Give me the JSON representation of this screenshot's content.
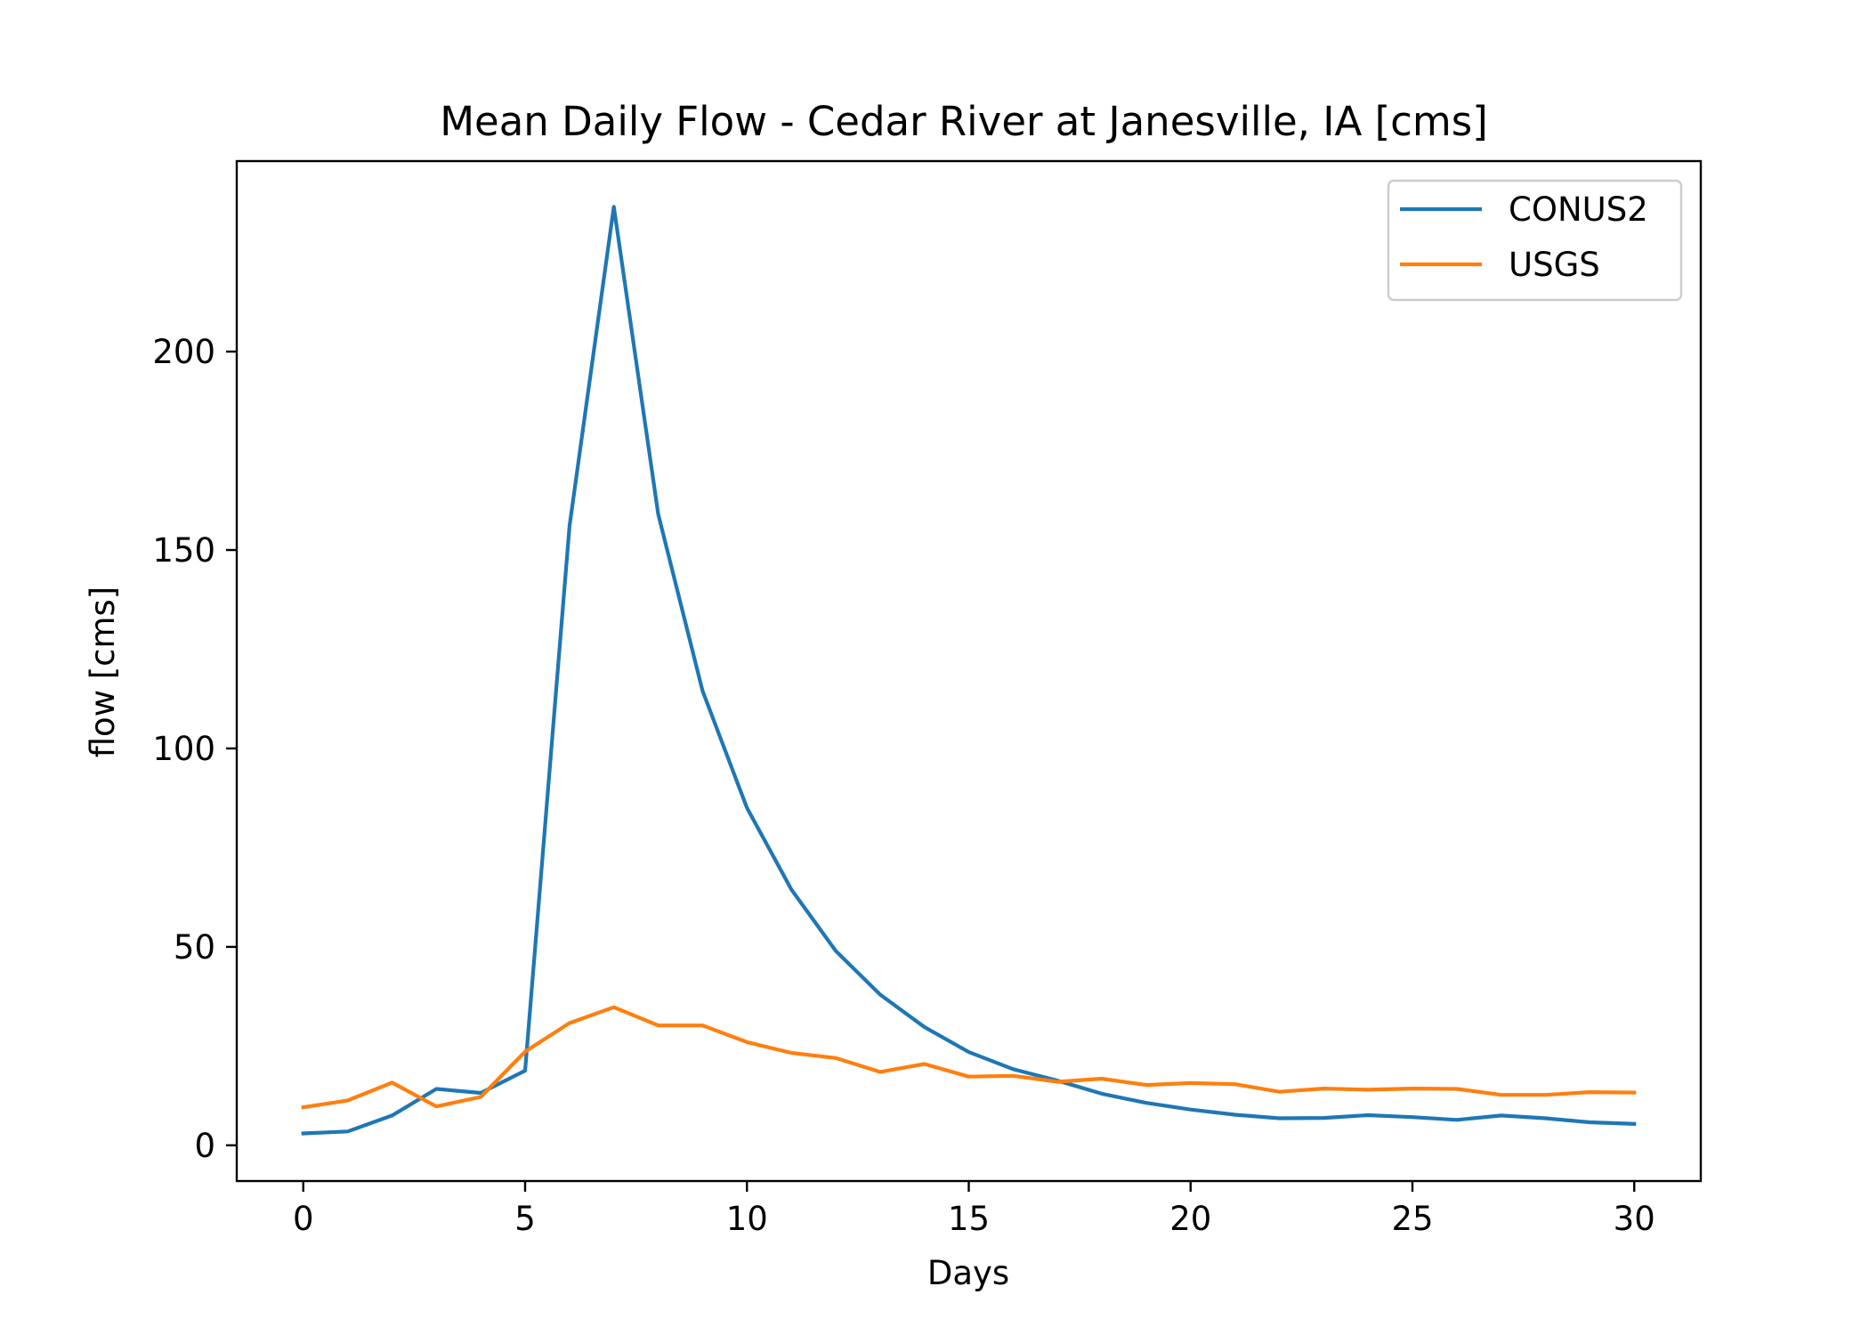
{
  "chart_data": {
    "type": "line",
    "title": "Mean Daily Flow - Cedar River at Janesville, IA [cms]",
    "xlabel": "Days",
    "ylabel": "flow [cms]",
    "xlim": [
      -1.5,
      31.5
    ],
    "ylim": [
      -9,
      248
    ],
    "xticks": [
      0,
      5,
      10,
      15,
      20,
      25,
      30
    ],
    "yticks": [
      0,
      50,
      100,
      150,
      200
    ],
    "grid": false,
    "legend_position": "top-right",
    "x": [
      0,
      1,
      2,
      3,
      4,
      5,
      6,
      7,
      8,
      9,
      10,
      11,
      12,
      13,
      14,
      15,
      16,
      17,
      18,
      19,
      20,
      21,
      22,
      23,
      24,
      25,
      26,
      27,
      28,
      29,
      30
    ],
    "series": [
      {
        "name": "CONUS2",
        "color": "#1f77b4",
        "values": [
          3,
          3.5,
          7.5,
          14.2,
          13.2,
          18.8,
          156,
          236.5,
          159,
          114.5,
          85,
          64.5,
          49,
          38,
          29.8,
          23.5,
          19.2,
          16.3,
          13,
          10.7,
          9,
          7.7,
          6.8,
          6.9,
          7.6,
          7.1,
          6.4,
          7.5,
          6.8,
          5.8,
          5.4
        ]
      },
      {
        "name": "USGS",
        "color": "#ff7f0e",
        "values": [
          9.6,
          11.3,
          15.8,
          9.8,
          12.2,
          23.6,
          30.8,
          34.8,
          30.2,
          30.2,
          26,
          23.3,
          22,
          18.5,
          20.5,
          17.3,
          17.5,
          16,
          16.8,
          15.2,
          15.7,
          15.4,
          13.5,
          14.3,
          14,
          14.3,
          14.2,
          12.7,
          12.7,
          13.4,
          13.3
        ]
      }
    ]
  }
}
